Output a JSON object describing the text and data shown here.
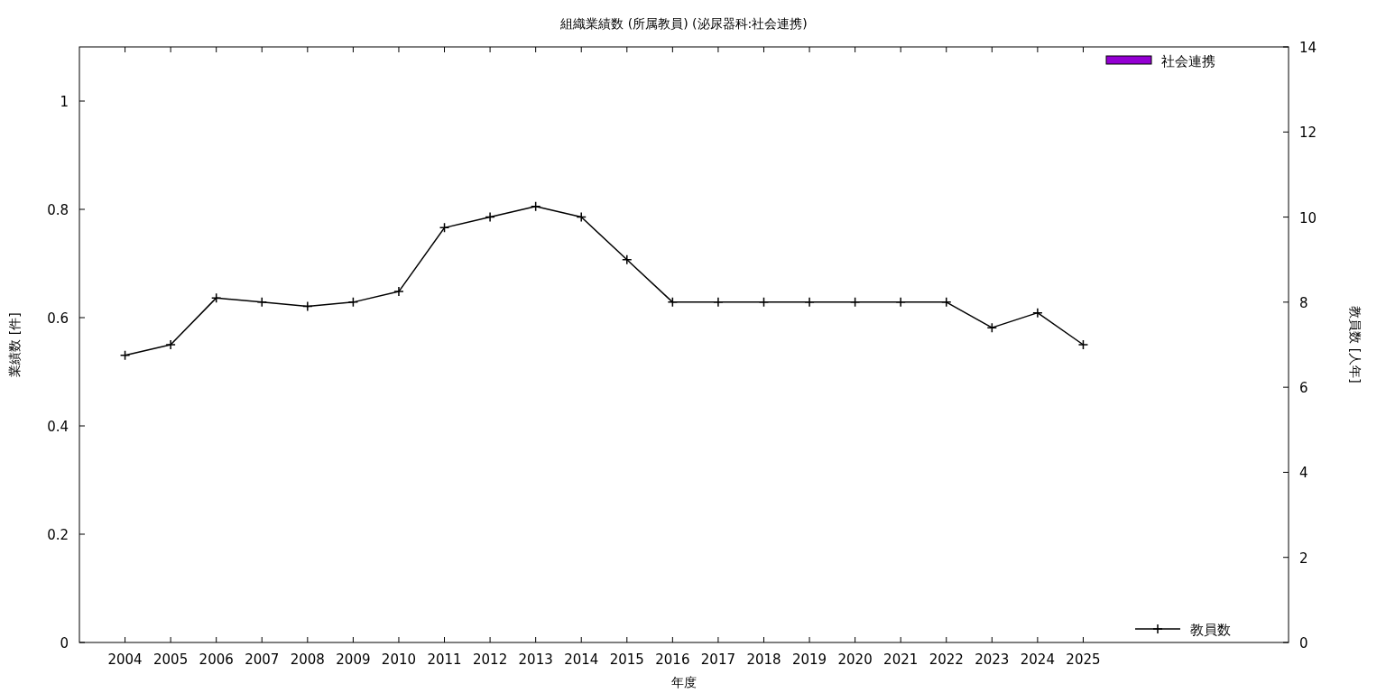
{
  "chart_data": {
    "type": "bar",
    "title": "組織業績数 (所属教員) (泌尿器科:社会連携)",
    "xlabel": "年度",
    "ylabel": "業績数 [件]",
    "y2label": "教員数 [人年]",
    "x": [
      2004,
      2005,
      2006,
      2007,
      2008,
      2009,
      2010,
      2011,
      2012,
      2013,
      2014,
      2015,
      2016,
      2017,
      2018,
      2019,
      2020,
      2021,
      2022,
      2023,
      2024,
      2025
    ],
    "xlim": [
      2003,
      2029.5
    ],
    "xticks": [
      2004,
      2005,
      2006,
      2007,
      2008,
      2009,
      2010,
      2011,
      2012,
      2013,
      2014,
      2015,
      2016,
      2017,
      2018,
      2019,
      2020,
      2021,
      2022,
      2023,
      2024,
      2025
    ],
    "ylim": [
      0,
      1.1
    ],
    "yticks": [
      0,
      0.2,
      0.4,
      0.6,
      0.8,
      1
    ],
    "y2lim": [
      0,
      14
    ],
    "y2ticks": [
      0,
      2,
      4,
      6,
      8,
      10,
      12,
      14
    ],
    "series": [
      {
        "name": "社会連携",
        "color": "#9400d3",
        "values": [
          0,
          0,
          0,
          0,
          0,
          0,
          0,
          0,
          0,
          0,
          0,
          0,
          0,
          0,
          0,
          0,
          0,
          0,
          0,
          0,
          0,
          0
        ]
      },
      {
        "name": "教員数",
        "type": "line",
        "axis": "y2",
        "color": "#000000",
        "marker": "cross",
        "values": [
          6.75,
          7,
          8.1,
          8,
          7.9,
          8,
          8.25,
          9.75,
          10,
          10.25,
          10,
          9,
          8,
          8,
          8,
          8,
          8,
          8,
          8,
          7.4,
          7.75,
          7
        ]
      }
    ],
    "legend": "right",
    "grid": false
  }
}
